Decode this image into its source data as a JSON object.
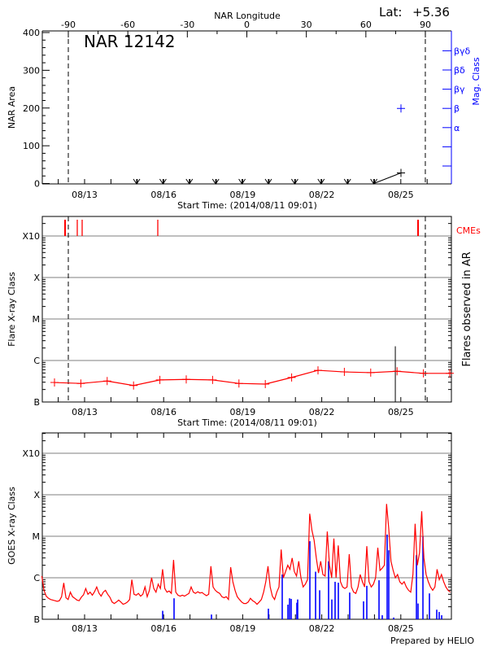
{
  "header": {
    "lat_label": "Lat:",
    "lat_value": "+5.36",
    "prepared_by": "Prepared by HELIO"
  },
  "colors": {
    "axis": "#000000",
    "grid": "#999999",
    "flare": "#ff0000",
    "cme": "#ff0000",
    "goes_long": "#ff0000",
    "goes_short": "#0000ff",
    "mag_class": "#0000ff"
  },
  "chart_data": [
    {
      "type": "scatter",
      "title": "NAR 12142",
      "xlabel": "Start Time: (2014/08/11 09:01)",
      "xlim": [
        "2014-08-11 09:01",
        "2014-08-26 22:00"
      ],
      "x_ticks": [
        {
          "label": "08/13",
          "t": "2014-08-13 00:00"
        },
        {
          "label": "08/16",
          "t": "2014-08-16 00:00"
        },
        {
          "label": "08/19",
          "t": "2014-08-19 00:00"
        },
        {
          "label": "08/22",
          "t": "2014-08-22 00:00"
        },
        {
          "label": "08/25",
          "t": "2014-08-25 00:00"
        }
      ],
      "top_axis": {
        "label": "NAR Longitude",
        "ticks": [
          -90,
          -60,
          -30,
          0,
          30,
          60,
          90
        ]
      },
      "ylabel": "NAR Area",
      "ylim": [
        0,
        400
      ],
      "y_ticks": [
        0,
        100,
        200,
        300,
        400
      ],
      "right_axis": {
        "label": "Mag. Class",
        "classes": [
          "",
          "",
          "α",
          "β",
          "βγ",
          "βδ",
          "βγδ"
        ]
      },
      "limb_crossings": [
        "2014-08-12 09:11",
        "2014-08-25 22:20"
      ],
      "zero_area_markers": [
        "2014-08-14 23:24",
        "2014-08-15 23:24",
        "2014-08-16 23:24",
        "2014-08-17 23:24",
        "2014-08-18 23:24",
        "2014-08-19 23:24",
        "2014-08-20 23:24",
        "2014-08-21 23:24",
        "2014-08-22 23:24",
        "2014-08-23 23:24"
      ],
      "area_points": [
        {
          "t": "2014-08-23 23:24",
          "area": 0
        },
        {
          "t": "2014-08-25 00:09",
          "area": 28
        }
      ],
      "mag_class_points": [
        {
          "t": "2014-08-25 00:09",
          "class": "β"
        }
      ],
      "grid": false
    },
    {
      "type": "line",
      "xlabel": "Start Time: (2014/08/11 09:01)",
      "ylabel": "Flare X-ray Class",
      "right_label": "Flares observed in AR",
      "cme_label": "CMEs",
      "y_scale": "log",
      "y_ticks": [
        {
          "label": "B",
          "flux": 1e-07
        },
        {
          "label": "C",
          "flux": 1e-06
        },
        {
          "label": "M",
          "flux": 1e-05
        },
        {
          "label": "X",
          "flux": 0.0001
        },
        {
          "label": "X10",
          "flux": 0.001
        }
      ],
      "grid": true,
      "x_ticks": [
        {
          "label": "08/13",
          "t": "2014-08-13 00:00"
        },
        {
          "label": "08/16",
          "t": "2014-08-16 00:00"
        },
        {
          "label": "08/19",
          "t": "2014-08-19 00:00"
        },
        {
          "label": "08/22",
          "t": "2014-08-22 00:00"
        },
        {
          "label": "08/25",
          "t": "2014-08-25 00:00"
        }
      ],
      "limb_crossings": [
        "2014-08-12 09:11",
        "2014-08-25 22:20"
      ],
      "background_flux": {
        "start": "2014-08-11 20:35",
        "cadence_minutes": 1440,
        "values": [
          2.95e-07,
          2.8e-07,
          3.2e-07,
          2.5e-07,
          3.4e-07,
          3.5e-07,
          3.4e-07,
          2.8e-07,
          2.7e-07,
          3.9e-07,
          5.8e-07,
          5.3e-07,
          5.1e-07,
          5.5e-07,
          4.9e-07,
          4.9e-07
        ]
      },
      "ar_flares": [
        {
          "t": "2014-08-24 19:00",
          "flux": 2.2e-06
        }
      ],
      "cmes": [
        "2014-08-12 06:13",
        "2014-08-12 17:20",
        "2014-08-12 21:47",
        "2014-08-15 18:40",
        "2014-08-25 15:42"
      ]
    },
    {
      "type": "line",
      "ylabel": "GOES X-ray Class",
      "y_scale": "log",
      "y_ticks": [
        {
          "label": "B",
          "flux": 1e-07
        },
        {
          "label": "C",
          "flux": 1e-06
        },
        {
          "label": "M",
          "flux": 1e-05
        },
        {
          "label": "X",
          "flux": 0.0001
        },
        {
          "label": "X10",
          "flux": 0.001
        }
      ],
      "grid": true,
      "x_ticks": [
        {
          "label": "08/13",
          "t": "2014-08-13 00:00"
        },
        {
          "label": "08/16",
          "t": "2014-08-16 00:00"
        },
        {
          "label": "08/19",
          "t": "2014-08-19 00:00"
        },
        {
          "label": "08/22",
          "t": "2014-08-22 00:00"
        },
        {
          "label": "08/25",
          "t": "2014-08-25 00:00"
        }
      ],
      "long_channel": {
        "start": "2014-08-11 09:01",
        "cadence_minutes": 120,
        "values": [
          1.1e-06,
          5e-07,
          3.6e-07,
          3.2e-07,
          3e-07,
          2.9e-07,
          2.8e-07,
          2.7e-07,
          2.8e-07,
          3.5e-07,
          7.5e-07,
          3.3e-07,
          3e-07,
          4.5e-07,
          3.5e-07,
          3.2e-07,
          2.9e-07,
          2.8e-07,
          3.4e-07,
          3.9e-07,
          5.5e-07,
          4e-07,
          4.5e-07,
          3.8e-07,
          4.6e-07,
          6e-07,
          4.3e-07,
          3.6e-07,
          4.5e-07,
          5e-07,
          4e-07,
          3.4e-07,
          2.6e-07,
          2.4e-07,
          2.6e-07,
          2.9e-07,
          2.6e-07,
          2.3e-07,
          2.4e-07,
          2.6e-07,
          3e-07,
          9e-07,
          4e-07,
          3.8e-07,
          4.2e-07,
          3.6e-07,
          4e-07,
          6e-07,
          3.5e-07,
          5e-07,
          1e-06,
          5.5e-07,
          4.5e-07,
          7e-07,
          5.5e-07,
          1.6e-06,
          5.5e-07,
          4.5e-07,
          4.8e-07,
          4.2e-07,
          2.7e-06,
          4.5e-07,
          3.8e-07,
          3.6e-07,
          3.8e-07,
          3.6e-07,
          3.9e-07,
          4.2e-07,
          6e-07,
          4.5e-07,
          4.2e-07,
          4.6e-07,
          4.3e-07,
          4.4e-07,
          4e-07,
          3.7e-07,
          4e-07,
          1.9e-06,
          6e-07,
          5e-07,
          4.5e-07,
          4.2e-07,
          3.5e-07,
          3.3e-07,
          3.5e-07,
          3e-07,
          1.8e-06,
          8e-07,
          5e-07,
          3.5e-07,
          3e-07,
          2.6e-07,
          2.4e-07,
          2.4e-07,
          2.6e-07,
          3.2e-07,
          2.8e-07,
          2.6e-07,
          2.3e-07,
          2.6e-07,
          3e-07,
          4.5e-07,
          8e-07,
          1.9e-06,
          6e-07,
          3.6e-07,
          3e-07,
          4.5e-07,
          6e-07,
          4.8e-06,
          1e-06,
          1.4e-06,
          2e-06,
          1.6e-06,
          3e-06,
          1.4e-06,
          1.1e-06,
          2.5e-06,
          1e-06,
          6e-07,
          7e-07,
          9e-07,
          3.5e-05,
          1.4e-05,
          8e-06,
          3e-06,
          1.3e-06,
          2.5e-06,
          1.2e-06,
          1.1e-06,
          1.3e-05,
          2e-06,
          1e-06,
          8.8e-06,
          1e-06,
          6e-06,
          8e-07,
          6e-07,
          5.5e-07,
          6e-07,
          3.7e-06,
          6e-07,
          4.5e-07,
          4.2e-07,
          6e-07,
          1.2e-06,
          8e-07,
          6e-07,
          5.8e-06,
          8e-07,
          6e-07,
          7e-07,
          1e-06,
          5.3e-06,
          1.5e-06,
          1.7e-06,
          2e-06,
          6e-05,
          1.5e-05,
          2.5e-06,
          1.5e-06,
          1e-06,
          1.2e-06,
          8e-07,
          7e-07,
          8e-07,
          6e-07,
          5e-07,
          4.5e-07,
          1.2e-06,
          2e-05,
          2e-06,
          4e-06,
          4e-05,
          3e-06,
          1.2e-06,
          8e-07,
          6e-07,
          5e-07,
          6e-07,
          1.6e-06,
          9e-07,
          1.2e-06,
          8e-07,
          6e-07,
          5e-07,
          4.5e-07
        ]
      },
      "short_channel_peaks": [
        {
          "t": "2014-08-15 23:07",
          "flux": 1.6e-07
        },
        {
          "t": "2014-08-16 09:29",
          "flux": 3.2e-07
        },
        {
          "t": "2014-08-17 19:33",
          "flux": 1.3e-07
        },
        {
          "t": "2014-08-19 23:24",
          "flux": 1.8e-07
        },
        {
          "t": "2014-08-20 12:00",
          "flux": 1.2e-06
        },
        {
          "t": "2014-08-20 17:11",
          "flux": 2.25e-07
        },
        {
          "t": "2014-08-20 18:40",
          "flux": 3.2e-07
        },
        {
          "t": "2014-08-20 20:10",
          "flux": 3.1e-07
        },
        {
          "t": "2014-08-21 01:20",
          "flux": 2.5e-07
        },
        {
          "t": "2014-08-21 02:04",
          "flux": 3e-07
        },
        {
          "t": "2014-08-21 13:11",
          "flux": 7.6e-06
        },
        {
          "t": "2014-08-21 18:22",
          "flux": 1.4e-06
        },
        {
          "t": "2014-08-21 22:05",
          "flux": 5e-07
        },
        {
          "t": "2014-08-22 06:13",
          "flux": 2.5e-06
        },
        {
          "t": "2014-08-22 09:11",
          "flux": 3e-07
        },
        {
          "t": "2014-08-22 12:09",
          "flux": 8e-07
        },
        {
          "t": "2014-08-22 15:07",
          "flux": 7.6e-07
        },
        {
          "t": "2014-08-23 01:27",
          "flux": 4.4e-07
        },
        {
          "t": "2014-08-23 14:04",
          "flux": 2.7e-07
        },
        {
          "t": "2014-08-23 17:02",
          "flux": 6.4e-07
        },
        {
          "t": "2014-08-24 04:09",
          "flux": 8.7e-07
        },
        {
          "t": "2014-08-24 07:07",
          "flux": 1.25e-07
        },
        {
          "t": "2014-08-24 11:33",
          "flux": 1.1e-05
        },
        {
          "t": "2014-08-24 13:02",
          "flux": 4.6e-06
        },
        {
          "t": "2014-08-24 17:29",
          "flux": 1.1e-07
        },
        {
          "t": "2014-08-25 14:14",
          "flux": 3.5e-06
        },
        {
          "t": "2014-08-25 15:42",
          "flux": 2.4e-07
        },
        {
          "t": "2014-08-25 20:09",
          "flux": 1e-05
        },
        {
          "t": "2014-08-26 02:04",
          "flux": 4.2e-07
        },
        {
          "t": "2014-08-26 08:44",
          "flux": 1.7e-07
        },
        {
          "t": "2014-08-26 10:58",
          "flux": 1.5e-07
        },
        {
          "t": "2014-08-26 13:12",
          "flux": 1.25e-07
        }
      ]
    }
  ]
}
